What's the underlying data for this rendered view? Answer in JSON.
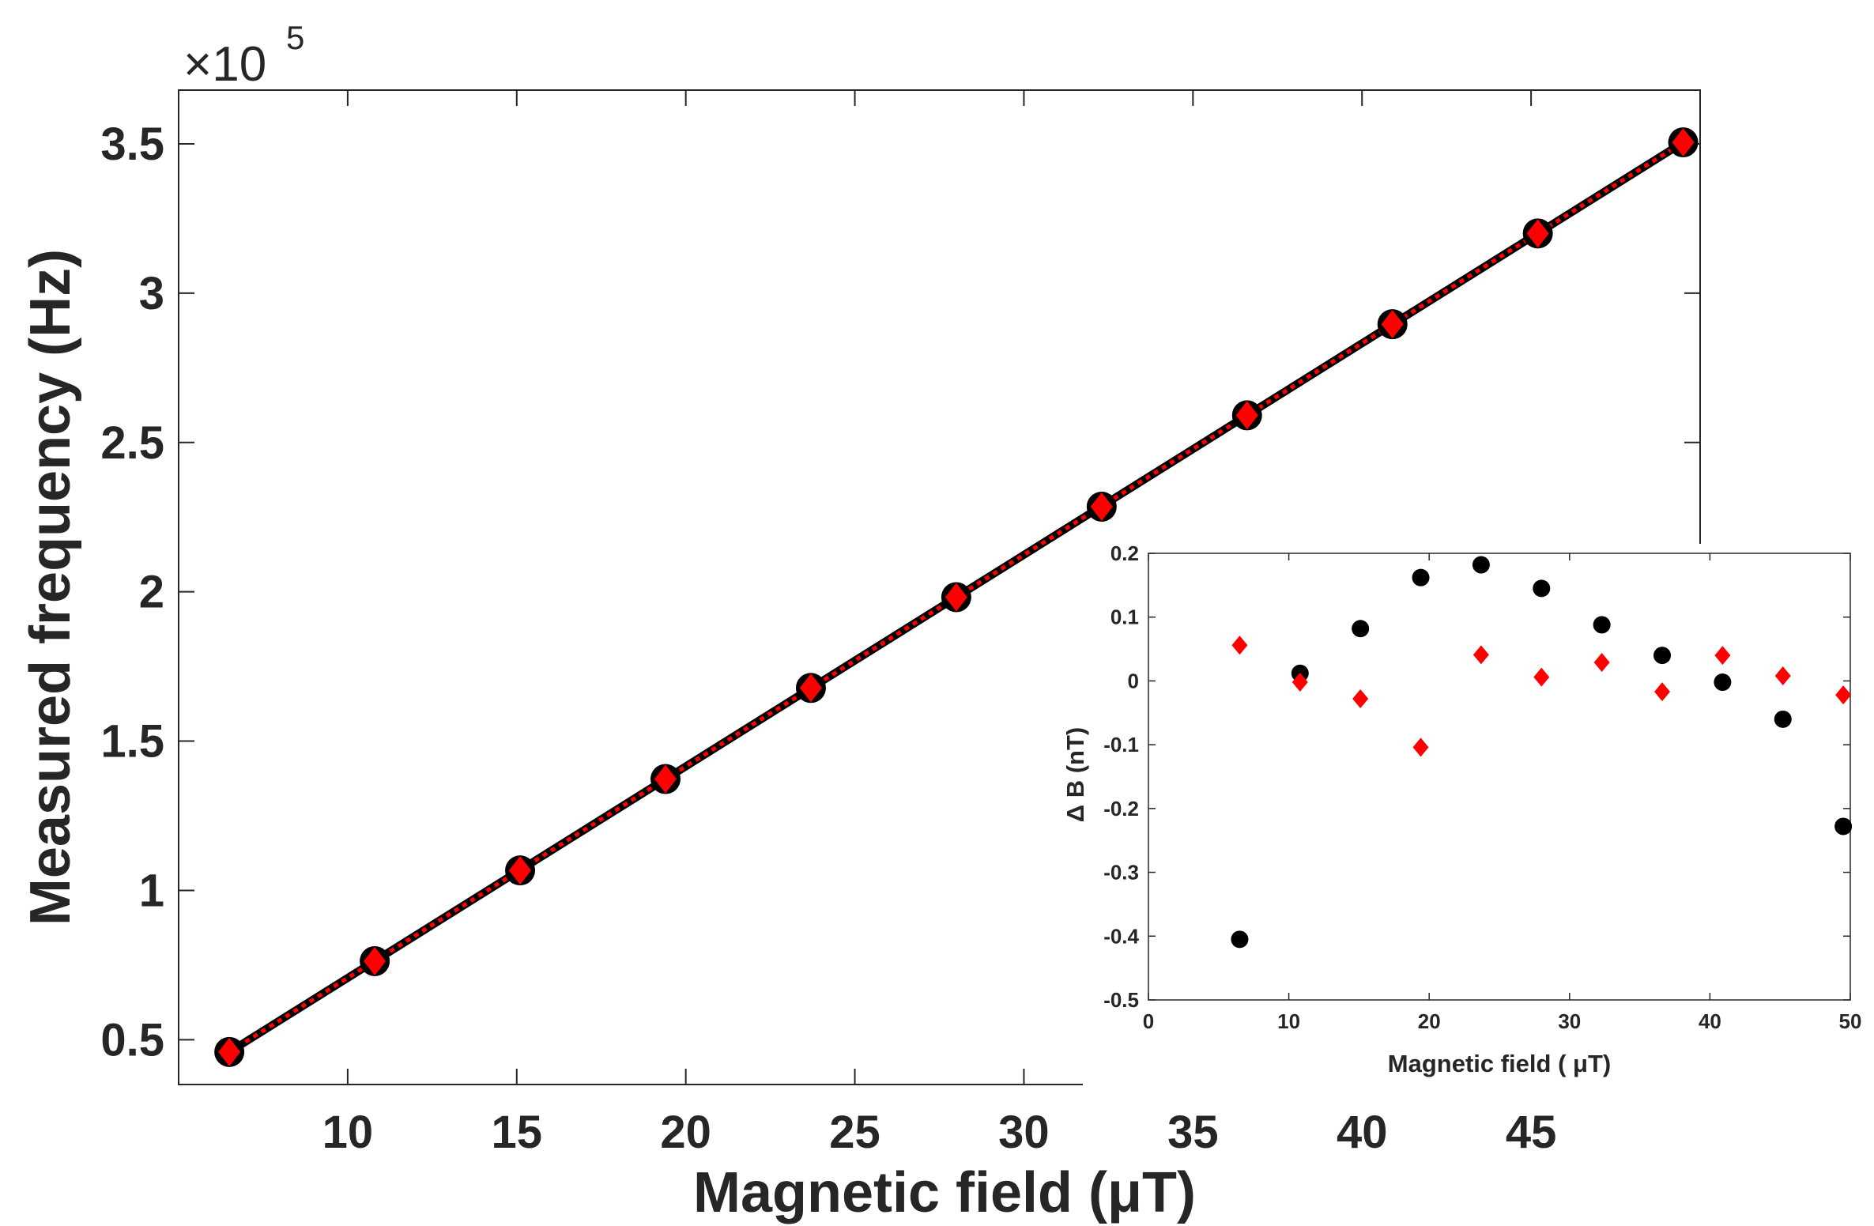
{
  "chart_data": [
    {
      "name": "main",
      "type": "line+scatter",
      "xlabel": "Magnetic field (μT)",
      "ylabel": "Measured frequency (Hz)",
      "y_exponent_label": "×10",
      "y_exponent_power": "5",
      "xlim": [
        5,
        50
      ],
      "ylim": [
        0.35,
        3.68
      ],
      "xticks": [
        10,
        15,
        20,
        25,
        30,
        35,
        40,
        45
      ],
      "yticks": [
        0.5,
        1,
        1.5,
        2,
        2.5,
        3,
        3.5
      ],
      "xtick_labels": [
        "10",
        "15",
        "20",
        "25",
        "30",
        "35",
        "40",
        "45"
      ],
      "ytick_labels": [
        "0.5",
        "1",
        "1.5",
        "2",
        "2.5",
        "3",
        "3.5"
      ],
      "series": [
        {
          "name": "black circles",
          "marker": "circle",
          "color": "#000000",
          "x": [
            6.5,
            10.8,
            15.1,
            19.4,
            23.7,
            28.0,
            32.3,
            36.6,
            40.9,
            45.2,
            49.5
          ],
          "y": [
            0.459,
            0.763,
            1.067,
            1.373,
            1.678,
            1.982,
            2.285,
            2.591,
            2.896,
            3.2,
            3.505
          ]
        },
        {
          "name": "red diamonds",
          "marker": "diamond",
          "color": "#ff0000",
          "x": [
            6.5,
            10.8,
            15.1,
            19.4,
            23.7,
            28.0,
            32.3,
            36.6,
            40.9,
            45.2,
            49.5
          ],
          "y": [
            0.459,
            0.763,
            1.067,
            1.373,
            1.678,
            1.982,
            2.285,
            2.591,
            2.896,
            3.2,
            3.505
          ]
        }
      ],
      "fit_lines": [
        {
          "style": "solid",
          "color": "#000000",
          "x": [
            6.5,
            49.5
          ],
          "y": [
            0.459,
            3.505
          ]
        },
        {
          "style": "dotted",
          "color": "#ff0000",
          "x": [
            6.5,
            49.5
          ],
          "y": [
            0.459,
            3.505
          ]
        }
      ]
    },
    {
      "name": "inset",
      "type": "scatter",
      "xlabel": "Magnetic field ( μT)",
      "ylabel": "Δ B (nT)",
      "xlim": [
        0,
        50
      ],
      "ylim": [
        -0.5,
        0.2
      ],
      "xticks": [
        0,
        10,
        20,
        30,
        40,
        50
      ],
      "yticks": [
        -0.5,
        -0.4,
        -0.3,
        -0.2,
        -0.1,
        0,
        0.1,
        0.2
      ],
      "xtick_labels": [
        "0",
        "10",
        "20",
        "30",
        "40",
        "50"
      ],
      "ytick_labels": [
        "-0.5",
        "-0.4",
        "-0.3",
        "-0.2",
        "-0.1",
        "0",
        "0.1",
        "0.2"
      ],
      "series": [
        {
          "name": "black circles",
          "marker": "circle",
          "color": "#000000",
          "x": [
            6.5,
            10.8,
            15.1,
            19.4,
            23.7,
            28.0,
            32.3,
            36.6,
            40.9,
            45.2,
            49.5
          ],
          "y": [
            -0.405,
            0.012,
            0.082,
            0.162,
            0.182,
            0.145,
            0.088,
            0.04,
            -0.002,
            -0.06,
            -0.228
          ]
        },
        {
          "name": "red diamonds",
          "marker": "diamond",
          "color": "#ff0000",
          "x": [
            6.5,
            10.8,
            15.1,
            19.4,
            23.7,
            28.0,
            32.3,
            36.6,
            40.9,
            45.2,
            49.5
          ],
          "y": [
            0.056,
            -0.002,
            -0.028,
            -0.104,
            0.041,
            0.006,
            0.029,
            -0.017,
            0.04,
            0.008,
            -0.022
          ]
        }
      ]
    }
  ]
}
